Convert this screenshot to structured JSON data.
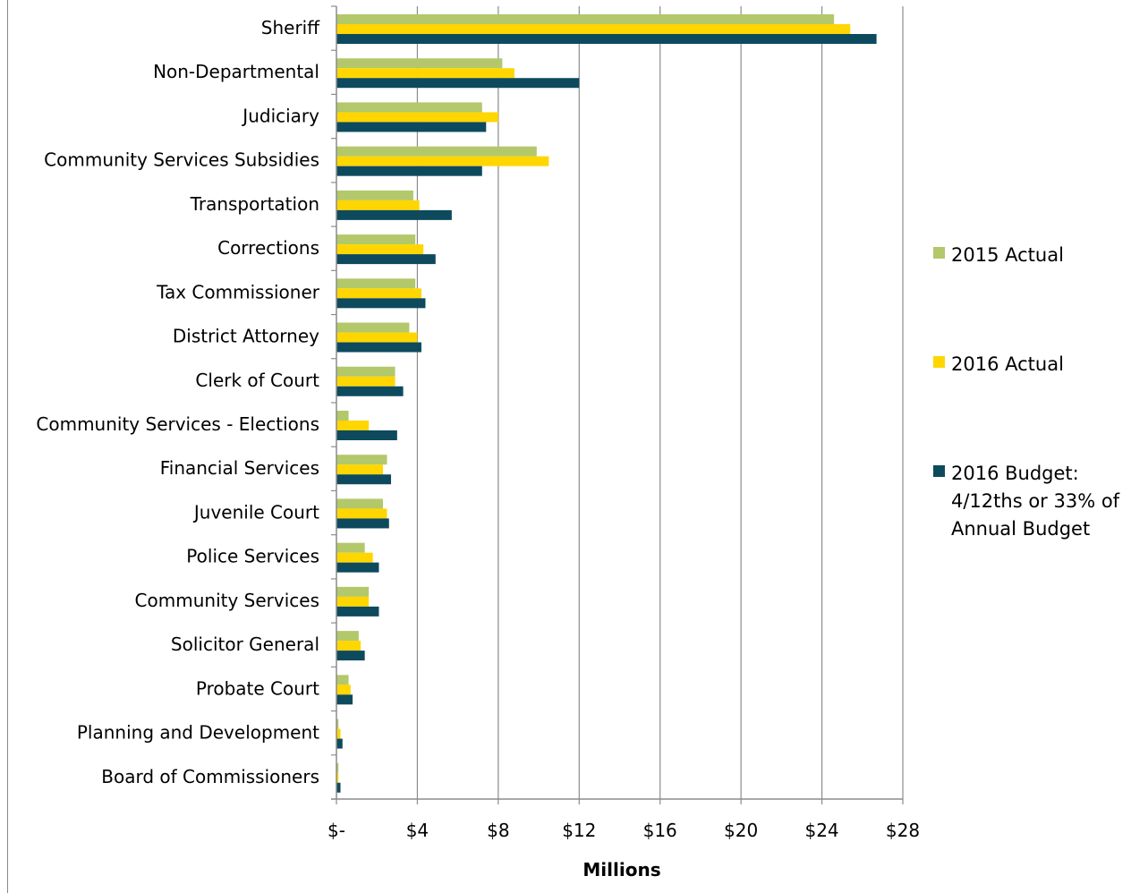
{
  "chart_data": {
    "type": "bar",
    "orientation": "horizontal",
    "title": "",
    "xlabel": "Millions",
    "ylabel": "",
    "xlim": [
      0,
      28
    ],
    "grid": "vertical",
    "legend_position": "right",
    "x_ticks": [
      0,
      4,
      8,
      12,
      16,
      20,
      24,
      28
    ],
    "x_tick_labels": [
      "$-",
      "$4",
      "$8",
      "$12",
      "$16",
      "$20",
      "$24",
      "$28"
    ],
    "categories": [
      "Sheriff",
      "Non-Departmental",
      "Judiciary",
      "Community Services Subsidies",
      "Transportation",
      "Corrections",
      "Tax Commissioner",
      "District Attorney",
      "Clerk of Court",
      "Community Services - Elections",
      "Financial Services",
      "Juvenile Court",
      "Police Services",
      "Community Services",
      "Solicitor General",
      "Probate Court",
      "Planning and Development",
      "Board of Commissioners"
    ],
    "series": [
      {
        "name": "2015 Actual",
        "color": "#B2C86A",
        "values": [
          24.6,
          8.2,
          7.2,
          9.9,
          3.8,
          3.9,
          3.9,
          3.6,
          2.9,
          0.6,
          2.5,
          2.3,
          1.4,
          1.6,
          1.1,
          0.6,
          0.1,
          0.1
        ]
      },
      {
        "name": "2016 Actual",
        "color": "#FFD600",
        "values": [
          25.4,
          8.8,
          8.0,
          10.5,
          4.1,
          4.3,
          4.2,
          4.0,
          2.9,
          1.6,
          2.3,
          2.5,
          1.8,
          1.6,
          1.2,
          0.7,
          0.2,
          0.1
        ]
      },
      {
        "name": "2016 Budget: 4/12ths or 33% of Annual Budget",
        "color": "#0D4A5E",
        "values": [
          26.7,
          12.0,
          7.4,
          7.2,
          5.7,
          4.9,
          4.4,
          4.2,
          3.3,
          3.0,
          2.7,
          2.6,
          2.1,
          2.1,
          1.4,
          0.8,
          0.3,
          0.2
        ]
      }
    ]
  }
}
